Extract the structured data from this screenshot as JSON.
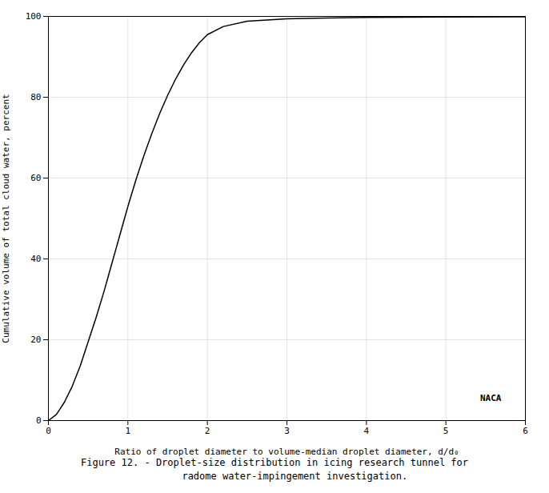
{
  "chart_data": {
    "type": "line",
    "title": "Figure 12. - Droplet-size distribution in icing research tunnel for",
    "subtitle": "       radome water-impingement investigation.",
    "xlabel": "Ratio of droplet diameter to volume-median droplet diameter, d/d₀",
    "ylabel": "Cumulative volume of total cloud water, percent",
    "x": [
      0.0,
      0.1,
      0.2,
      0.3,
      0.4,
      0.5,
      0.6,
      0.7,
      0.75,
      0.8,
      0.85,
      0.9,
      0.95,
      1.0,
      1.1,
      1.2,
      1.3,
      1.4,
      1.5,
      1.6,
      1.7,
      1.8,
      1.9,
      2.0,
      2.2,
      2.5,
      3.0,
      3.5,
      4.0,
      5.0,
      6.0
    ],
    "values": [
      0.0,
      1.5,
      4.5,
      8.5,
      13.5,
      19.5,
      25.5,
      32.0,
      35.5,
      39.0,
      42.5,
      46.0,
      49.5,
      53.0,
      59.5,
      65.5,
      71.0,
      76.0,
      80.5,
      84.5,
      88.0,
      91.0,
      93.5,
      95.5,
      97.5,
      98.8,
      99.4,
      99.6,
      99.75,
      99.85,
      99.9
    ],
    "color": "#000000",
    "xlim": [
      0,
      6
    ],
    "ylim": [
      0,
      100
    ],
    "xticks": [
      0,
      1,
      2,
      3,
      4,
      5,
      6
    ],
    "yticks": [
      0,
      20,
      40,
      60,
      80,
      100
    ],
    "grid": true,
    "annotations": [
      "NACA"
    ]
  }
}
